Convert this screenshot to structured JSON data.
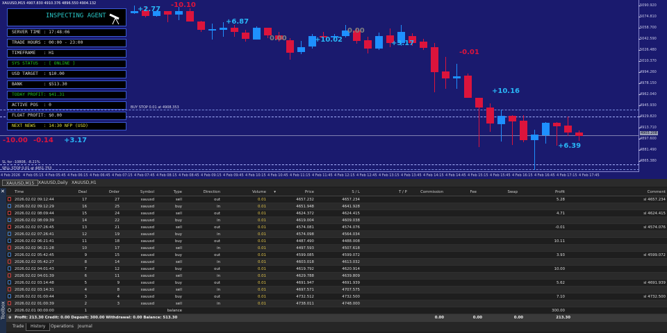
{
  "chart": {
    "symbol_info": "XAUUSD,M15  4907.830 4910.376 4896.550 4904.132",
    "price_ticks": [
      "5090.920",
      "5074.810",
      "5058.700",
      "5042.590",
      "5026.480",
      "5010.370",
      "4994.260",
      "4978.150",
      "4962.040",
      "4945.930",
      "4929.820",
      "4913.710",
      "4897.600",
      "4881.490",
      "4865.380"
    ],
    "current_price": "4903.208",
    "time_ticks": [
      "4 Feb 2026",
      "4 Feb 05:15",
      "4 Feb 05:45",
      "4 Feb 06:15",
      "4 Feb 06:45",
      "4 Feb 07:15",
      "4 Feb 07:45",
      "4 Feb 08:15",
      "4 Feb 08:45",
      "4 Feb 09:15",
      "4 Feb 09:45",
      "4 Feb 10:15",
      "4 Feb 10:45",
      "4 Feb 11:15",
      "4 Feb 11:45",
      "4 Feb 12:15",
      "4 Feb 12:45",
      "4 Feb 13:15",
      "4 Feb 13:45",
      "4 Feb 14:15",
      "4 Feb 14:45",
      "4 Feb 15:15",
      "4 Feb 15:45",
      "4 Feb 16:15",
      "4 Feb 16:45",
      "4 Feb 17:15",
      "4 Feb 17:45"
    ],
    "order_lines": {
      "buy_stop": "BUY STOP 0.01 at 4908.353",
      "sl_info": "SL for -10808, -8.21%",
      "sell_stop": "SELL STOP 0.01 at 4851.753"
    },
    "profit_labels": [
      "-10.00",
      "-0.14",
      "+3.17",
      "+2.77",
      "-10.10",
      "+6.87",
      "0.00",
      "+10.02",
      "0.00",
      "+3.17",
      "-0.01",
      "+10.16",
      "+6.39"
    ],
    "colors": {
      "background": "#1a1a6e",
      "bull": "#1e90ff",
      "bear": "#dc143c",
      "profit": "#29b6f6",
      "loss": "#dc143c",
      "zero": "#808080"
    }
  },
  "panel": {
    "title": "INSPECTING AGENT",
    "rows": [
      {
        "label": "SERVER TIME : 17:48:06",
        "color": "#dddddd"
      },
      {
        "label": "TRADE HOURS : 00:00 - 23:00",
        "color": "#dddddd"
      },
      {
        "label": "TIMEFRAME   : H1",
        "color": "#dddddd"
      },
      {
        "label": "SYS STATUS  : [ ONLINE ]",
        "color": "#22c422"
      },
      {
        "label": "USD TARGET  : $10.00",
        "color": "#dddddd"
      },
      {
        "label": "BANK        : $513.30",
        "color": "#dddddd"
      },
      {
        "label": "TODAY PROFIT: $41.31",
        "color": "#22c422"
      },
      {
        "label": "ACTIVE POS  : 0",
        "color": "#dddddd"
      },
      {
        "label": "FLOAT PROFIT: $0.00",
        "color": "#dddddd"
      },
      {
        "label": "NEXT NEWS   : 14:30 NFP (USD)",
        "color": "#e0e040"
      }
    ]
  },
  "chart_tabs": [
    "XAUUSD,M15",
    "XAUUSD,Daily",
    "XAUUSD,H1"
  ],
  "table": {
    "headers": [
      "Time",
      "Deal",
      "Order",
      "Symbol",
      "Type",
      "Direction",
      "Volume",
      "Price",
      "S / L",
      "T / P",
      "Commission",
      "Fee",
      "Swap",
      "Profit",
      "Comment"
    ],
    "rows": [
      [
        "2026.02.02 09:12:44",
        "17",
        "27",
        "xauusd",
        "sell",
        "out",
        "0.01",
        "4657.232",
        "4657.234",
        "",
        "",
        "",
        "",
        "5.28",
        "sl 4657.234"
      ],
      [
        "2026.02.02 09:12:29",
        "16",
        "25",
        "xauusd",
        "buy",
        "in",
        "0.01",
        "4651.948",
        "4641.928",
        "",
        "",
        "",
        "",
        "",
        ""
      ],
      [
        "2026.02.02 08:09:44",
        "15",
        "24",
        "xauusd",
        "sell",
        "out",
        "0.01",
        "4624.372",
        "4624.415",
        "",
        "",
        "",
        "",
        "4.71",
        "sl 4624.415"
      ],
      [
        "2026.02.02 08:09:39",
        "14",
        "22",
        "xauusd",
        "buy",
        "in",
        "0.01",
        "4619.004",
        "4609.038",
        "",
        "",
        "",
        "",
        "",
        ""
      ],
      [
        "2026.02.02 07:26:45",
        "13",
        "21",
        "xauusd",
        "sell",
        "out",
        "0.01",
        "4574.081",
        "4574.076",
        "",
        "",
        "",
        "",
        "-0.01",
        "sl 4574.076"
      ],
      [
        "2026.02.02 07:26:41",
        "12",
        "19",
        "xauusd",
        "buy",
        "in",
        "0.01",
        "4574.098",
        "4564.034",
        "",
        "",
        "",
        "",
        "",
        ""
      ],
      [
        "2026.02.02 06:21:41",
        "11",
        "18",
        "xauusd",
        "buy",
        "out",
        "0.01",
        "4487.490",
        "4488.008",
        "",
        "",
        "",
        "",
        "10.11",
        ""
      ],
      [
        "2026.02.02 06:21:28",
        "10",
        "17",
        "xauusd",
        "sell",
        "in",
        "0.01",
        "4497.593",
        "4507.618",
        "",
        "",
        "",
        "",
        "",
        ""
      ],
      [
        "2026.02.02 05:42:45",
        "9",
        "15",
        "xauusd",
        "buy",
        "out",
        "0.01",
        "4599.085",
        "4599.072",
        "",
        "",
        "",
        "",
        "3.93",
        "sl 4599.072"
      ],
      [
        "2026.02.02 05:42:27",
        "8",
        "14",
        "xauusd",
        "sell",
        "in",
        "0.01",
        "4603.018",
        "4613.032",
        "",
        "",
        "",
        "",
        "",
        ""
      ],
      [
        "2026.02.02 04:01:43",
        "7",
        "12",
        "xauusd",
        "buy",
        "out",
        "0.01",
        "4619.792",
        "4620.914",
        "",
        "",
        "",
        "",
        "10.00",
        ""
      ],
      [
        "2026.02.02 04:01:39",
        "6",
        "11",
        "xauusd",
        "sell",
        "in",
        "0.01",
        "4629.788",
        "4639.809",
        "",
        "",
        "",
        "",
        "",
        ""
      ],
      [
        "2026.02.02 03:14:48",
        "5",
        "9",
        "xauusd",
        "buy",
        "out",
        "0.01",
        "4691.947",
        "4691.939",
        "",
        "",
        "",
        "",
        "5.62",
        "sl 4691.939"
      ],
      [
        "2026.02.02 03:14:31",
        "4",
        "8",
        "xauusd",
        "sell",
        "in",
        "0.01",
        "4697.571",
        "4707.575",
        "",
        "",
        "",
        "",
        "",
        ""
      ],
      [
        "2026.02.02 01:00:44",
        "3",
        "4",
        "xauusd",
        "buy",
        "out",
        "0.01",
        "4732.512",
        "4732.500",
        "",
        "",
        "",
        "",
        "7.10",
        "sl 4732.500"
      ],
      [
        "2026.02.02 01:00:39",
        "2",
        "3",
        "xauusd",
        "sell",
        "in",
        "0.01",
        "4738.011",
        "4748.000",
        "",
        "",
        "",
        "",
        "",
        ""
      ],
      [
        "2026.02.01 00:00:00",
        "1",
        "",
        "",
        "balance",
        "",
        "",
        "",
        "",
        "",
        "",
        "",
        "",
        "300.00",
        ""
      ]
    ],
    "summary": {
      "text": "Profit: 213.30  Credit: 0.00  Deposit: 300.00  Withdrawal: 0.00  Balance: 513.30",
      "commission": "0.00",
      "fee": "0.00",
      "swap": "0.00",
      "profit": "213.30"
    }
  },
  "toolbox_label": "Toolbox",
  "bottom_tabs": [
    "Trade",
    "History",
    "Operations",
    "Journal"
  ]
}
